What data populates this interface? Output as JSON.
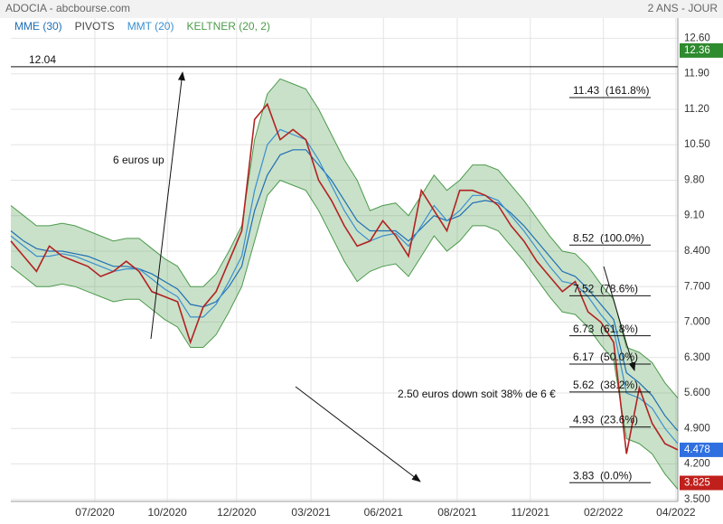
{
  "header": {
    "title": "ADOCIA - abcbourse.com",
    "period": "2 ANS - JOUR"
  },
  "chart_data": {
    "type": "line",
    "pivots_label": "PIVOTS",
    "x": [
      0,
      2,
      4,
      6,
      8,
      10,
      12,
      14,
      16,
      18,
      20,
      22,
      24,
      26,
      28,
      30,
      32,
      34,
      36,
      38,
      40,
      42,
      44,
      46,
      48,
      50,
      52,
      54,
      56,
      58,
      60,
      62,
      64,
      66,
      68,
      70,
      72,
      74,
      76,
      78,
      80,
      82,
      84,
      86,
      88,
      90,
      92,
      94,
      96,
      98,
      100,
      102,
      104
    ],
    "xlim": [
      0,
      104
    ],
    "xticks": [
      {
        "value": 13.1,
        "label": "07/2020"
      },
      {
        "value": 24.4,
        "label": "10/2020"
      },
      {
        "value": 35.2,
        "label": "12/2020"
      },
      {
        "value": 46.8,
        "label": "03/2021"
      },
      {
        "value": 58.1,
        "label": "06/2021"
      },
      {
        "value": 69.6,
        "label": "08/2021"
      },
      {
        "value": 81.0,
        "label": "11/2021"
      },
      {
        "value": 92.4,
        "label": "02/2022"
      },
      {
        "value": 103.7,
        "label": "04/2022"
      }
    ],
    "ylim": [
      3.46,
      13.0
    ],
    "yticks": [
      {
        "value": 12.6,
        "label": "12.60"
      },
      {
        "value": 11.9,
        "label": "11.90"
      },
      {
        "value": 11.2,
        "label": "11.20"
      },
      {
        "value": 10.5,
        "label": "10.50"
      },
      {
        "value": 9.8,
        "label": "9.80"
      },
      {
        "value": 9.1,
        "label": "9.10"
      },
      {
        "value": 8.4,
        "label": "8.400"
      },
      {
        "value": 7.7,
        "label": "7.700"
      },
      {
        "value": 7.0,
        "label": "7.000"
      },
      {
        "value": 6.3,
        "label": "6.300"
      },
      {
        "value": 5.6,
        "label": "5.600"
      },
      {
        "value": 4.9,
        "label": "4.900"
      },
      {
        "value": 4.2,
        "label": "4.200"
      },
      {
        "value": 3.5,
        "label": "3.500"
      }
    ],
    "grid": true,
    "price": {
      "color": "#b22222",
      "values": [
        8.6,
        8.3,
        8.0,
        8.5,
        8.3,
        8.2,
        8.1,
        7.9,
        8.0,
        8.2,
        8.0,
        7.6,
        7.5,
        7.4,
        6.6,
        7.3,
        7.6,
        8.2,
        8.8,
        11.0,
        11.3,
        10.6,
        10.8,
        10.6,
        9.8,
        9.4,
        8.9,
        8.5,
        8.6,
        9.0,
        8.7,
        8.3,
        9.6,
        9.2,
        8.8,
        9.6,
        9.6,
        9.5,
        9.3,
        8.9,
        8.6,
        8.2,
        7.9,
        7.6,
        7.8,
        7.2,
        7.0,
        6.6,
        4.4,
        5.7,
        5.0,
        4.6,
        4.478
      ]
    },
    "series": [
      {
        "name": "MME (30)",
        "color": "#1f6fb5",
        "values": [
          8.8,
          8.6,
          8.45,
          8.4,
          8.4,
          8.35,
          8.3,
          8.2,
          8.1,
          8.1,
          8.05,
          7.95,
          7.8,
          7.65,
          7.35,
          7.3,
          7.4,
          7.7,
          8.1,
          9.2,
          9.9,
          10.3,
          10.4,
          10.4,
          10.1,
          9.8,
          9.4,
          9.0,
          8.8,
          8.8,
          8.8,
          8.6,
          8.85,
          9.1,
          9.0,
          9.1,
          9.35,
          9.4,
          9.35,
          9.15,
          8.9,
          8.6,
          8.3,
          8.0,
          7.9,
          7.65,
          7.35,
          7.05,
          6.0,
          5.8,
          5.55,
          5.15,
          4.85
        ]
      },
      {
        "name": "MMT (20)",
        "color": "#3a8fd0",
        "values": [
          8.7,
          8.5,
          8.3,
          8.3,
          8.35,
          8.3,
          8.2,
          8.1,
          8.0,
          8.05,
          8.05,
          7.85,
          7.65,
          7.5,
          7.1,
          7.1,
          7.35,
          7.8,
          8.3,
          9.6,
          10.5,
          10.8,
          10.7,
          10.6,
          10.2,
          9.7,
          9.2,
          8.8,
          8.6,
          8.7,
          8.75,
          8.5,
          8.9,
          9.3,
          9.0,
          9.2,
          9.5,
          9.5,
          9.4,
          9.1,
          8.8,
          8.45,
          8.1,
          7.8,
          7.75,
          7.5,
          7.15,
          6.85,
          5.6,
          5.5,
          5.3,
          4.9,
          4.6
        ]
      },
      {
        "name": "KELTNER (20, 2)",
        "color": "#4c9a4c",
        "upper": [
          9.3,
          9.1,
          8.9,
          8.9,
          8.95,
          8.9,
          8.8,
          8.7,
          8.6,
          8.65,
          8.65,
          8.45,
          8.25,
          8.1,
          7.7,
          7.7,
          7.95,
          8.4,
          8.9,
          10.6,
          11.5,
          11.8,
          11.7,
          11.6,
          11.2,
          10.7,
          10.2,
          9.8,
          9.2,
          9.3,
          9.35,
          9.1,
          9.5,
          9.9,
          9.6,
          9.8,
          10.1,
          10.1,
          10.0,
          9.7,
          9.4,
          9.05,
          8.7,
          8.4,
          8.35,
          8.1,
          7.75,
          7.45,
          6.5,
          6.4,
          6.2,
          5.8,
          5.5
        ],
        "lower": [
          8.1,
          7.9,
          7.7,
          7.7,
          7.75,
          7.7,
          7.6,
          7.5,
          7.4,
          7.45,
          7.45,
          7.25,
          7.05,
          6.9,
          6.5,
          6.5,
          6.75,
          7.2,
          7.7,
          8.6,
          9.5,
          9.8,
          9.7,
          9.6,
          9.2,
          8.7,
          8.2,
          7.8,
          8.0,
          8.1,
          8.15,
          7.9,
          8.3,
          8.7,
          8.4,
          8.6,
          8.9,
          8.9,
          8.8,
          8.5,
          8.2,
          7.85,
          7.5,
          7.2,
          7.15,
          6.9,
          6.55,
          6.25,
          4.7,
          4.6,
          4.4,
          4.0,
          3.7
        ]
      }
    ],
    "hline": {
      "value": 12.04,
      "label": "12.04"
    },
    "fib_levels": [
      {
        "value": 11.43,
        "label": "11.43  (161.8%)"
      },
      {
        "value": 8.52,
        "label": "8.52  (100.0%)"
      },
      {
        "value": 7.52,
        "label": "7.52  (78.6%)"
      },
      {
        "value": 6.73,
        "label": "6.73  (61.8%)"
      },
      {
        "value": 6.17,
        "label": "6.17  (50.0%)"
      },
      {
        "value": 5.62,
        "label": "5.62  (38.2%)"
      },
      {
        "value": 4.93,
        "label": "4.93  (23.6%)"
      },
      {
        "value": 3.83,
        "label": "3.83  (0.0%)"
      }
    ],
    "price_markers": [
      {
        "value": 12.36,
        "color": "#2e8b2e"
      },
      {
        "value": 4.478,
        "color": "#2f6fe0"
      },
      {
        "value": 3.825,
        "color": "#c0201c"
      }
    ],
    "annotations": [
      "6 euros up",
      "2.50 euros down soit 38% de 6 €"
    ]
  }
}
